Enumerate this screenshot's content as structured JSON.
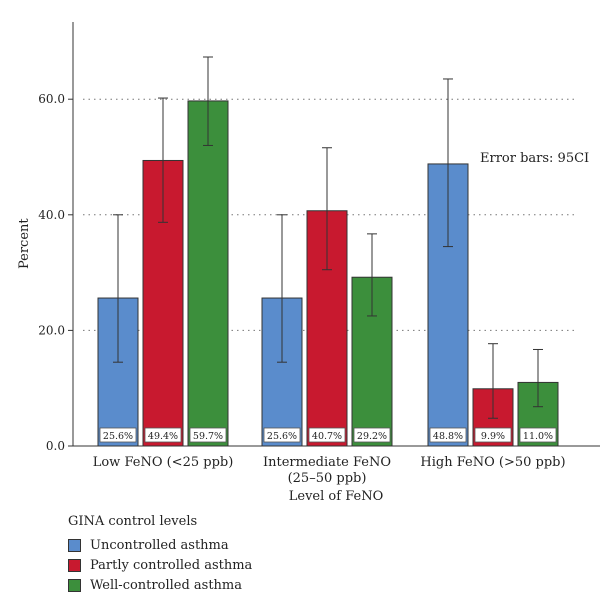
{
  "chart_data": {
    "type": "bar",
    "ylabel": "Percent",
    "xlabel": "Level of FeNO",
    "ylim": [
      0,
      70
    ],
    "yticks": [
      "0.0",
      "20.0",
      "40.0",
      "60.0"
    ],
    "grid": "horizontal-dotted",
    "annotation": "Error bars: 95CI",
    "categories": [
      [
        "Low FeNO (<25 ppb)"
      ],
      [
        "Intermediate FeNO",
        "(25–50 ppb)"
      ],
      [
        "High FeNO (>50 ppb)"
      ]
    ],
    "series": [
      {
        "name": "Uncontrolled asthma",
        "color": "#5a8ccc",
        "values": [
          25.6,
          25.6,
          48.8
        ],
        "labels": [
          "25.6%",
          "25.6%",
          "48.8%"
        ],
        "ci_low": [
          14.5,
          14.5,
          34.5
        ],
        "ci_high": [
          40.0,
          40.0,
          63.5
        ]
      },
      {
        "name": "Partly controlled asthma",
        "color": "#c8192f",
        "values": [
          49.4,
          40.7,
          9.9
        ],
        "labels": [
          "49.4%",
          "40.7%",
          "9.9%"
        ],
        "ci_low": [
          38.7,
          30.5,
          4.8
        ],
        "ci_high": [
          60.2,
          51.6,
          17.7
        ]
      },
      {
        "name": "Well-controlled asthma",
        "color": "#3c8f3c",
        "values": [
          59.7,
          29.2,
          11.0
        ],
        "labels": [
          "59.7%",
          "29.2%",
          "11.0%"
        ],
        "ci_low": [
          52.0,
          22.5,
          6.8
        ],
        "ci_high": [
          67.3,
          36.7,
          16.7
        ]
      }
    ],
    "legend": {
      "title": "GINA control levels",
      "placement": "bottom-left"
    }
  }
}
